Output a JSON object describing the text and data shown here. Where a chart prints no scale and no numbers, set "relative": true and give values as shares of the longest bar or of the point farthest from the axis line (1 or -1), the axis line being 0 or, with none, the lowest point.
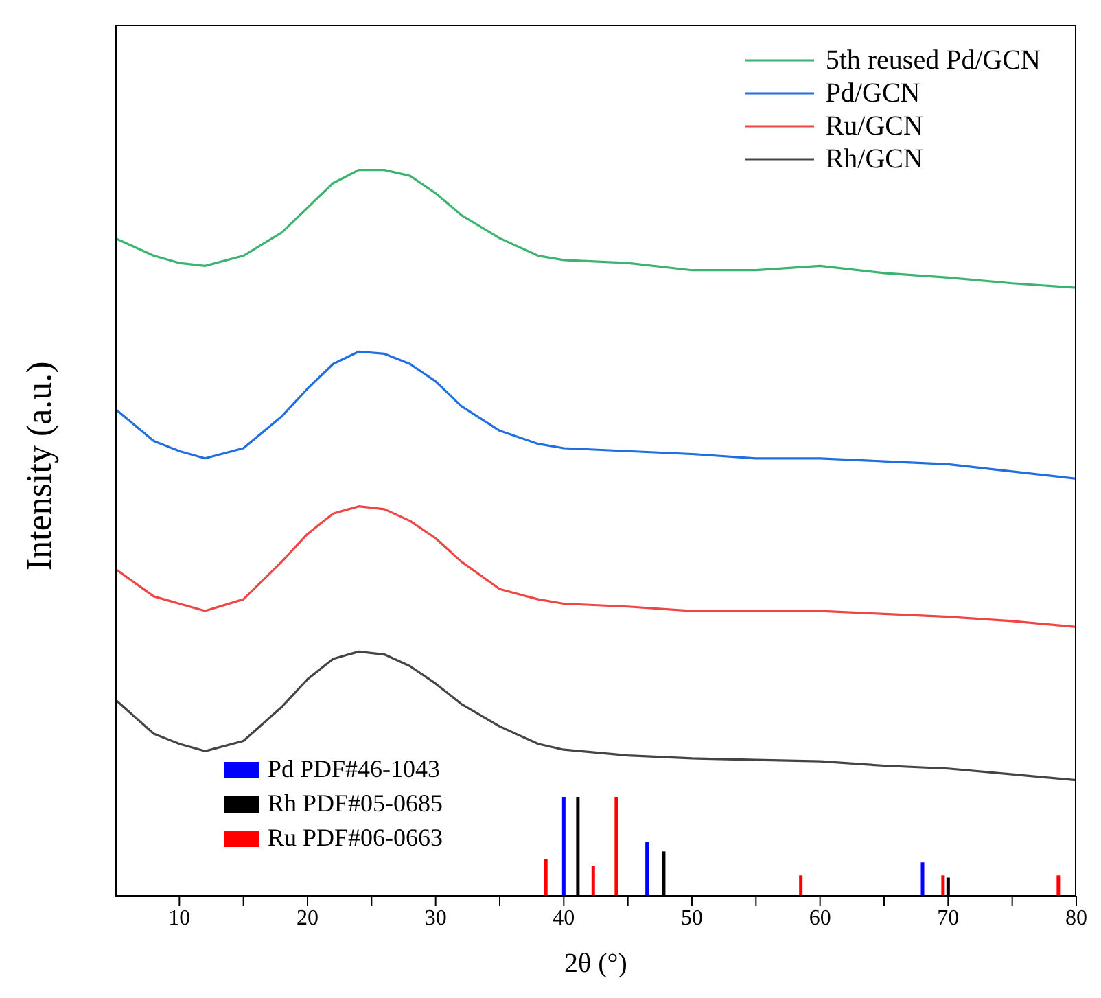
{
  "chart_data": {
    "type": "line",
    "relative": true,
    "xlabel": "2θ (°)",
    "ylabel": "Intensity (a.u.)",
    "legend": "top right",
    "marker": "none",
    "xlim": [
      5,
      80
    ],
    "xticks": [
      10,
      {
        "value": 15,
        "label": null
      },
      20,
      {
        "value": 25,
        "label": null
      },
      30,
      {
        "value": 35,
        "label": null
      },
      40,
      {
        "value": 45,
        "label": null
      },
      50,
      {
        "value": 55,
        "label": null
      },
      60,
      {
        "value": 65,
        "label": null
      },
      70,
      {
        "value": 75,
        "label": null
      },
      80
    ],
    "x": [
      5,
      8,
      10,
      12,
      15,
      18,
      20,
      22,
      24,
      26,
      28,
      30,
      32,
      35,
      38,
      40,
      45,
      50,
      55,
      60,
      65,
      70,
      75,
      80
    ],
    "series": [
      {
        "name": "5th reused Pd/GCN",
        "color": "#3cb371",
        "values": [
          0.906,
          0.882,
          0.872,
          0.868,
          0.882,
          0.914,
          0.948,
          0.982,
          1,
          1,
          0.992,
          0.968,
          0.938,
          0.906,
          0.882,
          0.876,
          0.872,
          0.862,
          0.862,
          0.868,
          0.858,
          0.852,
          0.844,
          0.838
        ]
      },
      {
        "name": "Pd/GCN",
        "color": "#1f6fe0",
        "values": [
          0.671,
          0.627,
          0.613,
          0.603,
          0.617,
          0.661,
          0.699,
          0.733,
          0.75,
          0.747,
          0.733,
          0.709,
          0.675,
          0.641,
          0.623,
          0.617,
          0.613,
          0.609,
          0.603,
          0.603,
          0.599,
          0.595,
          0.585,
          0.575
        ]
      },
      {
        "name": "Ru/GCN",
        "color": "#f04545",
        "values": [
          0.451,
          0.413,
          0.403,
          0.393,
          0.409,
          0.461,
          0.499,
          0.527,
          0.537,
          0.533,
          0.517,
          0.493,
          0.461,
          0.423,
          0.409,
          0.403,
          0.399,
          0.393,
          0.393,
          0.393,
          0.389,
          0.385,
          0.379,
          0.371
        ]
      },
      {
        "name": "Rh/GCN",
        "color": "#444444",
        "values": [
          0.271,
          0.224,
          0.21,
          0.2,
          0.214,
          0.261,
          0.299,
          0.327,
          0.337,
          0.333,
          0.317,
          0.293,
          0.265,
          0.234,
          0.21,
          0.202,
          0.194,
          0.19,
          0.188,
          0.186,
          0.18,
          0.176,
          0.168,
          0.16
        ]
      },
      {
        "name": "Pd PDF#46-1043",
        "type": "bar",
        "color": "#0000ff",
        "x": [
          40.0,
          46.5,
          68.0
        ],
        "values": [
          0.137,
          0.075,
          0.047
        ]
      },
      {
        "name": "Rh PDF#05-0685",
        "type": "bar",
        "color": "#000000",
        "x": [
          41.1,
          47.8,
          70.0
        ],
        "values": [
          0.137,
          0.062,
          0.026
        ]
      },
      {
        "name": "Ru PDF#06-0663",
        "type": "bar",
        "color": "#ff0000",
        "x": [
          38.6,
          42.3,
          44.1,
          58.5,
          69.6,
          78.6
        ],
        "values": [
          0.051,
          0.042,
          0.137,
          0.029,
          0.029,
          0.029
        ]
      }
    ]
  }
}
